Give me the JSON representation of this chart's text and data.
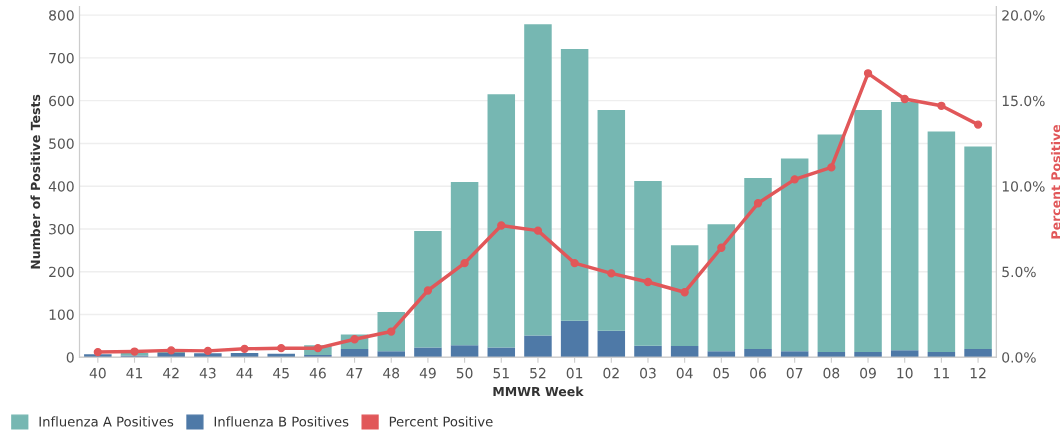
{
  "chart_data": {
    "type": "bar",
    "stacked": true,
    "xlabel": "MMWR Week",
    "ylabel": "Number of Positive Tests",
    "y2label": "Percent Positive",
    "categories": [
      "40",
      "41",
      "42",
      "43",
      "44",
      "45",
      "46",
      "47",
      "48",
      "49",
      "50",
      "51",
      "52",
      "01",
      "02",
      "03",
      "04",
      "05",
      "06",
      "07",
      "08",
      "09",
      "10",
      "11",
      "12"
    ],
    "series": [
      {
        "name": "Influenza B Positives",
        "color": "#4e79a7",
        "values": [
          7,
          4,
          10,
          9,
          10,
          8,
          5,
          19,
          14,
          23,
          28,
          23,
          51,
          85,
          62,
          27,
          26,
          14,
          19,
          14,
          12,
          12,
          16,
          12,
          19
        ]
      },
      {
        "name": "Influenza A Positives",
        "color": "#76b7b2",
        "values": [
          null,
          6,
          2,
          null,
          null,
          null,
          23,
          34,
          92,
          272,
          382,
          592,
          728,
          636,
          516,
          385,
          236,
          297,
          400,
          451,
          509,
          566,
          581,
          516,
          474
        ]
      },
      {
        "name": "Percent Positive",
        "type": "line",
        "axis": "y2",
        "color": "#e15759",
        "marker": "circle",
        "values": [
          0.3,
          0.33,
          0.4,
          0.37,
          0.49,
          0.53,
          0.53,
          1.05,
          1.5,
          3.9,
          5.5,
          7.7,
          7.4,
          5.5,
          4.9,
          4.4,
          3.8,
          6.4,
          9.0,
          10.4,
          11.1,
          16.6,
          15.1,
          14.7,
          13.6
        ]
      }
    ],
    "ylim": [
      0,
      820
    ],
    "yticks": [
      0,
      100,
      200,
      300,
      400,
      500,
      600,
      700,
      800
    ],
    "y2lim": [
      0,
      20.5
    ],
    "y2ticks": [
      {
        "value": 0,
        "label": "0.0%"
      },
      {
        "value": 5,
        "label": "5.0%"
      },
      {
        "value": 10,
        "label": "10.0%"
      },
      {
        "value": 15,
        "label": "15.0%"
      },
      {
        "value": 20,
        "label": "20.0%"
      }
    ],
    "grid": "y",
    "legend": "bottom left"
  }
}
